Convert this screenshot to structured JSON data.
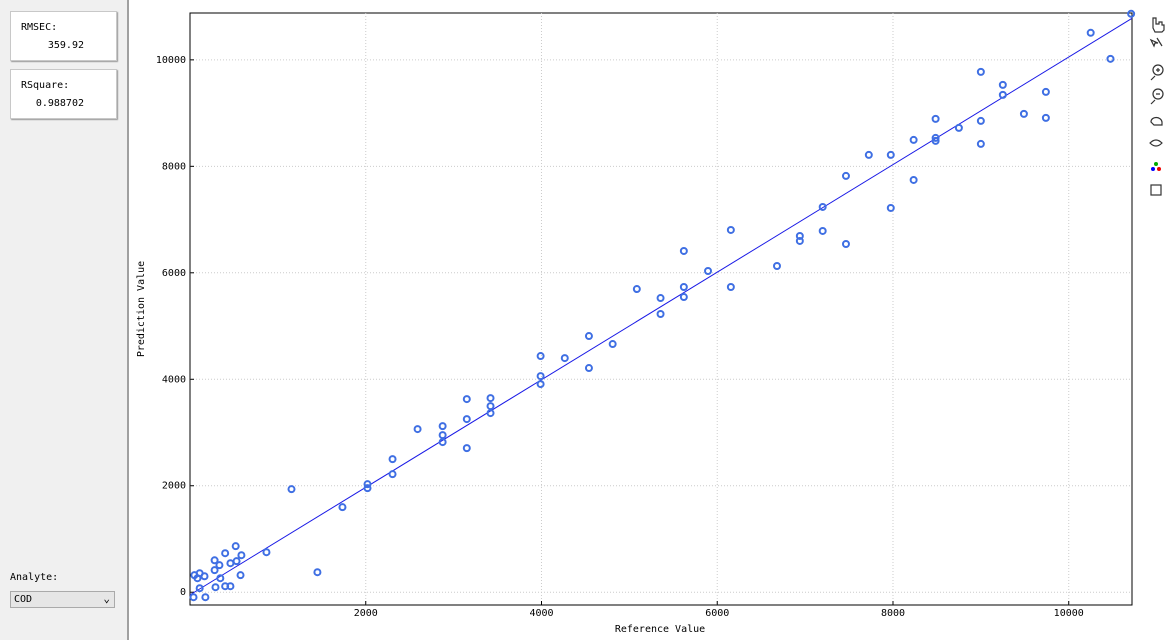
{
  "panel": {
    "stats": [
      {
        "label": "RMSEC:",
        "value": "359.92"
      },
      {
        "label": "RSquare:",
        "value": "0.988702"
      }
    ],
    "analyte": {
      "label": "Analyte:",
      "selected": "COD"
    }
  },
  "chart_data": {
    "type": "scatter",
    "x_label": "Reference Value",
    "y_label": "Prediction Value",
    "color": "#3f6fe3",
    "line_color": "#1a1ae6",
    "grid": true,
    "xlim": [
      0,
      10720
    ],
    "ylim": [
      -240,
      10880
    ],
    "xticks": [
      2000,
      4000,
      6000,
      8000,
      10000
    ],
    "yticks": [
      0,
      2000,
      4000,
      6000,
      8000,
      10000
    ],
    "x": [
      40,
      50,
      110,
      85,
      165,
      110,
      175,
      290,
      280,
      280,
      335,
      345,
      400,
      400,
      460,
      460,
      520,
      530,
      585,
      575,
      870,
      1155,
      1450,
      1735,
      2020,
      2020,
      2305,
      2305,
      2590,
      2875,
      2875,
      2875,
      3150,
      3150,
      3150,
      3420,
      3420,
      3420,
      3990,
      3990,
      3990,
      4265,
      4540,
      4540,
      4810,
      5085,
      5355,
      5355,
      5620,
      5620,
      5620,
      5895,
      6155,
      6155,
      6680,
      6940,
      6940,
      7200,
      7200,
      7465,
      7465,
      7725,
      7975,
      7975,
      8235,
      8235,
      8485,
      8485,
      8485,
      8750,
      9000,
      9000,
      9000,
      9250,
      9250,
      9490,
      9740,
      9740,
      10250,
      10475,
      10710
    ],
    "values": [
      -94,
      320,
      357,
      263,
      300,
      75,
      -94,
      94,
      600,
      414,
      508,
      263,
      733,
      113,
      113,
      545,
      865,
      583,
      695,
      320,
      752,
      1936,
      376,
      1598,
      2030,
      1955,
      2500,
      2218,
      3064,
      3120,
      2951,
      2820,
      3628,
      3252,
      2707,
      3647,
      3496,
      3365,
      4436,
      4060,
      3910,
      4398,
      4812,
      4211,
      4662,
      5695,
      5526,
      5226,
      6410,
      5733,
      5545,
      6034,
      6805,
      5733,
      6128,
      6692,
      6598,
      7237,
      6786,
      7820,
      6541,
      8214,
      8214,
      7218,
      8496,
      7744,
      8891,
      8534,
      8477,
      8722,
      9774,
      8853,
      8421,
      9530,
      9342,
      8985,
      9398,
      8910,
      10508,
      10019,
      10865
    ],
    "fit": {
      "x": [
        0,
        10720
      ],
      "values": [
        -50,
        10780
      ]
    }
  }
}
